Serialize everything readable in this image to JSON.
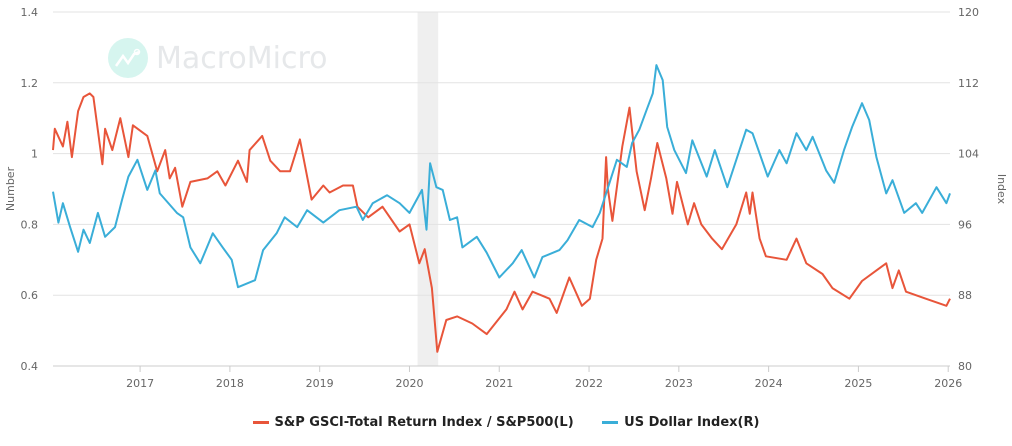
{
  "watermark": "MacroMicro",
  "chart_data": {
    "type": "line",
    "title": "",
    "xlabel": "",
    "ylabel_left": "Number",
    "ylabel_right": "Index",
    "xlim": [
      2016.03,
      2026.02
    ],
    "ylim_left": [
      0.4,
      1.4
    ],
    "ylim_right": [
      80,
      120
    ],
    "x_ticks": [
      "2017",
      "2018",
      "2019",
      "2020",
      "2021",
      "2022",
      "2023",
      "2024",
      "2025",
      "2026"
    ],
    "y_ticks_left": [
      "1.4",
      "1.2",
      "1",
      "0.8",
      "0.6",
      "0.4"
    ],
    "y_ticks_right": [
      "120",
      "112",
      "104",
      "96",
      "88",
      "80"
    ],
    "grid": true,
    "legend_position": "bottom",
    "shaded_periods": [
      [
        2020.09,
        2020.32
      ]
    ],
    "series": [
      {
        "name": "S&P GSCI-Total Return Index / S&P500(L)",
        "axis": "left",
        "color": "#e8553a",
        "x": [
          2016.03,
          2016.05,
          2016.14,
          2016.19,
          2016.24,
          2016.31,
          2016.37,
          2016.44,
          2016.48,
          2016.58,
          2016.61,
          2016.69,
          2016.78,
          2016.87,
          2016.92,
          2017.08,
          2017.19,
          2017.28,
          2017.33,
          2017.39,
          2017.47,
          2017.56,
          2017.75,
          2017.86,
          2017.95,
          2018.09,
          2018.19,
          2018.22,
          2018.36,
          2018.45,
          2018.56,
          2018.67,
          2018.78,
          2018.91,
          2019.04,
          2019.11,
          2019.26,
          2019.37,
          2019.42,
          2019.54,
          2019.7,
          2019.89,
          2020.0,
          2020.11,
          2020.17,
          2020.25,
          2020.31,
          2020.41,
          2020.53,
          2020.7,
          2020.86,
          2021.08,
          2021.17,
          2021.26,
          2021.37,
          2021.56,
          2021.64,
          2021.78,
          2021.92,
          2022.01,
          2022.08,
          2022.15,
          2022.19,
          2022.21,
          2022.26,
          2022.37,
          2022.45,
          2022.53,
          2022.62,
          2022.69,
          2022.76,
          2022.86,
          2022.93,
          2022.98,
          2023.1,
          2023.17,
          2023.25,
          2023.37,
          2023.48,
          2023.64,
          2023.75,
          2023.79,
          2023.82,
          2023.9,
          2023.97,
          2024.2,
          2024.31,
          2024.42,
          2024.6,
          2024.71,
          2024.9,
          2025.04,
          2025.2,
          2025.31,
          2025.38,
          2025.45,
          2025.53,
          2025.75,
          2025.98,
          2026.02
        ],
        "y": [
          1.01,
          1.07,
          1.02,
          1.09,
          0.99,
          1.12,
          1.16,
          1.17,
          1.16,
          0.97,
          1.07,
          1.01,
          1.1,
          0.99,
          1.08,
          1.05,
          0.95,
          1.01,
          0.93,
          0.96,
          0.85,
          0.92,
          0.93,
          0.95,
          0.91,
          0.98,
          0.92,
          1.01,
          1.05,
          0.98,
          0.95,
          0.95,
          1.04,
          0.87,
          0.91,
          0.89,
          0.91,
          0.91,
          0.85,
          0.82,
          0.85,
          0.78,
          0.8,
          0.69,
          0.73,
          0.62,
          0.44,
          0.53,
          0.54,
          0.52,
          0.49,
          0.56,
          0.61,
          0.56,
          0.61,
          0.59,
          0.55,
          0.65,
          0.57,
          0.59,
          0.7,
          0.76,
          0.99,
          0.9,
          0.81,
          1.02,
          1.13,
          0.95,
          0.84,
          0.93,
          1.03,
          0.93,
          0.83,
          0.92,
          0.8,
          0.86,
          0.8,
          0.76,
          0.73,
          0.8,
          0.89,
          0.83,
          0.89,
          0.76,
          0.71,
          0.7,
          0.76,
          0.69,
          0.66,
          0.62,
          0.59,
          0.64,
          0.67,
          0.69,
          0.62,
          0.67,
          0.61,
          0.59,
          0.57,
          0.59
        ]
      },
      {
        "name": "US Dollar Index(R)",
        "axis": "right",
        "color": "#3aaed8",
        "x": [
          2016.03,
          2016.09,
          2016.14,
          2016.22,
          2016.31,
          2016.37,
          2016.44,
          2016.53,
          2016.61,
          2016.72,
          2016.8,
          2016.87,
          2016.97,
          2017.08,
          2017.17,
          2017.22,
          2017.41,
          2017.48,
          2017.56,
          2017.67,
          2017.81,
          2017.92,
          2018.02,
          2018.09,
          2018.28,
          2018.37,
          2018.52,
          2018.61,
          2018.75,
          2018.86,
          2019.04,
          2019.22,
          2019.41,
          2019.48,
          2019.59,
          2019.75,
          2019.89,
          2020.0,
          2020.14,
          2020.19,
          2020.23,
          2020.3,
          2020.37,
          2020.45,
          2020.53,
          2020.59,
          2020.75,
          2020.86,
          2021.0,
          2021.15,
          2021.25,
          2021.39,
          2021.48,
          2021.67,
          2021.76,
          2021.89,
          2022.04,
          2022.12,
          2022.19,
          2022.31,
          2022.42,
          2022.48,
          2022.56,
          2022.64,
          2022.71,
          2022.75,
          2022.82,
          2022.87,
          2022.95,
          2023.08,
          2023.15,
          2023.31,
          2023.4,
          2023.54,
          2023.64,
          2023.75,
          2023.82,
          2023.99,
          2024.12,
          2024.2,
          2024.31,
          2024.42,
          2024.49,
          2024.64,
          2024.73,
          2024.84,
          2024.93,
          2025.04,
          2025.12,
          2025.2,
          2025.31,
          2025.38,
          2025.51,
          2025.64,
          2025.71,
          2025.87,
          2025.98,
          2026.02
        ],
        "y": [
          99.7,
          96.2,
          98.4,
          95.7,
          92.9,
          95.4,
          93.9,
          97.3,
          94.6,
          95.7,
          98.8,
          101.4,
          103.3,
          99.9,
          102.1,
          99.5,
          97.3,
          96.8,
          93.4,
          91.6,
          95.0,
          93.4,
          92.0,
          88.9,
          89.7,
          93.1,
          95.0,
          96.8,
          95.7,
          97.6,
          96.2,
          97.6,
          98.0,
          96.5,
          98.4,
          99.3,
          98.4,
          97.3,
          99.9,
          95.4,
          102.9,
          100.2,
          99.9,
          96.5,
          96.8,
          93.4,
          94.6,
          92.8,
          90.0,
          91.6,
          93.1,
          90.0,
          92.3,
          93.1,
          94.2,
          96.5,
          95.7,
          97.3,
          99.5,
          103.3,
          102.5,
          105.2,
          106.7,
          108.9,
          110.8,
          114.0,
          112.3,
          107.0,
          104.4,
          101.8,
          105.5,
          101.4,
          104.4,
          100.2,
          103.3,
          106.7,
          106.3,
          101.4,
          104.4,
          102.9,
          106.3,
          104.4,
          105.9,
          102.1,
          100.7,
          104.4,
          107.0,
          109.7,
          107.8,
          103.6,
          99.5,
          101.0,
          97.3,
          98.4,
          97.3,
          100.2,
          98.4,
          99.5
        ]
      }
    ]
  }
}
